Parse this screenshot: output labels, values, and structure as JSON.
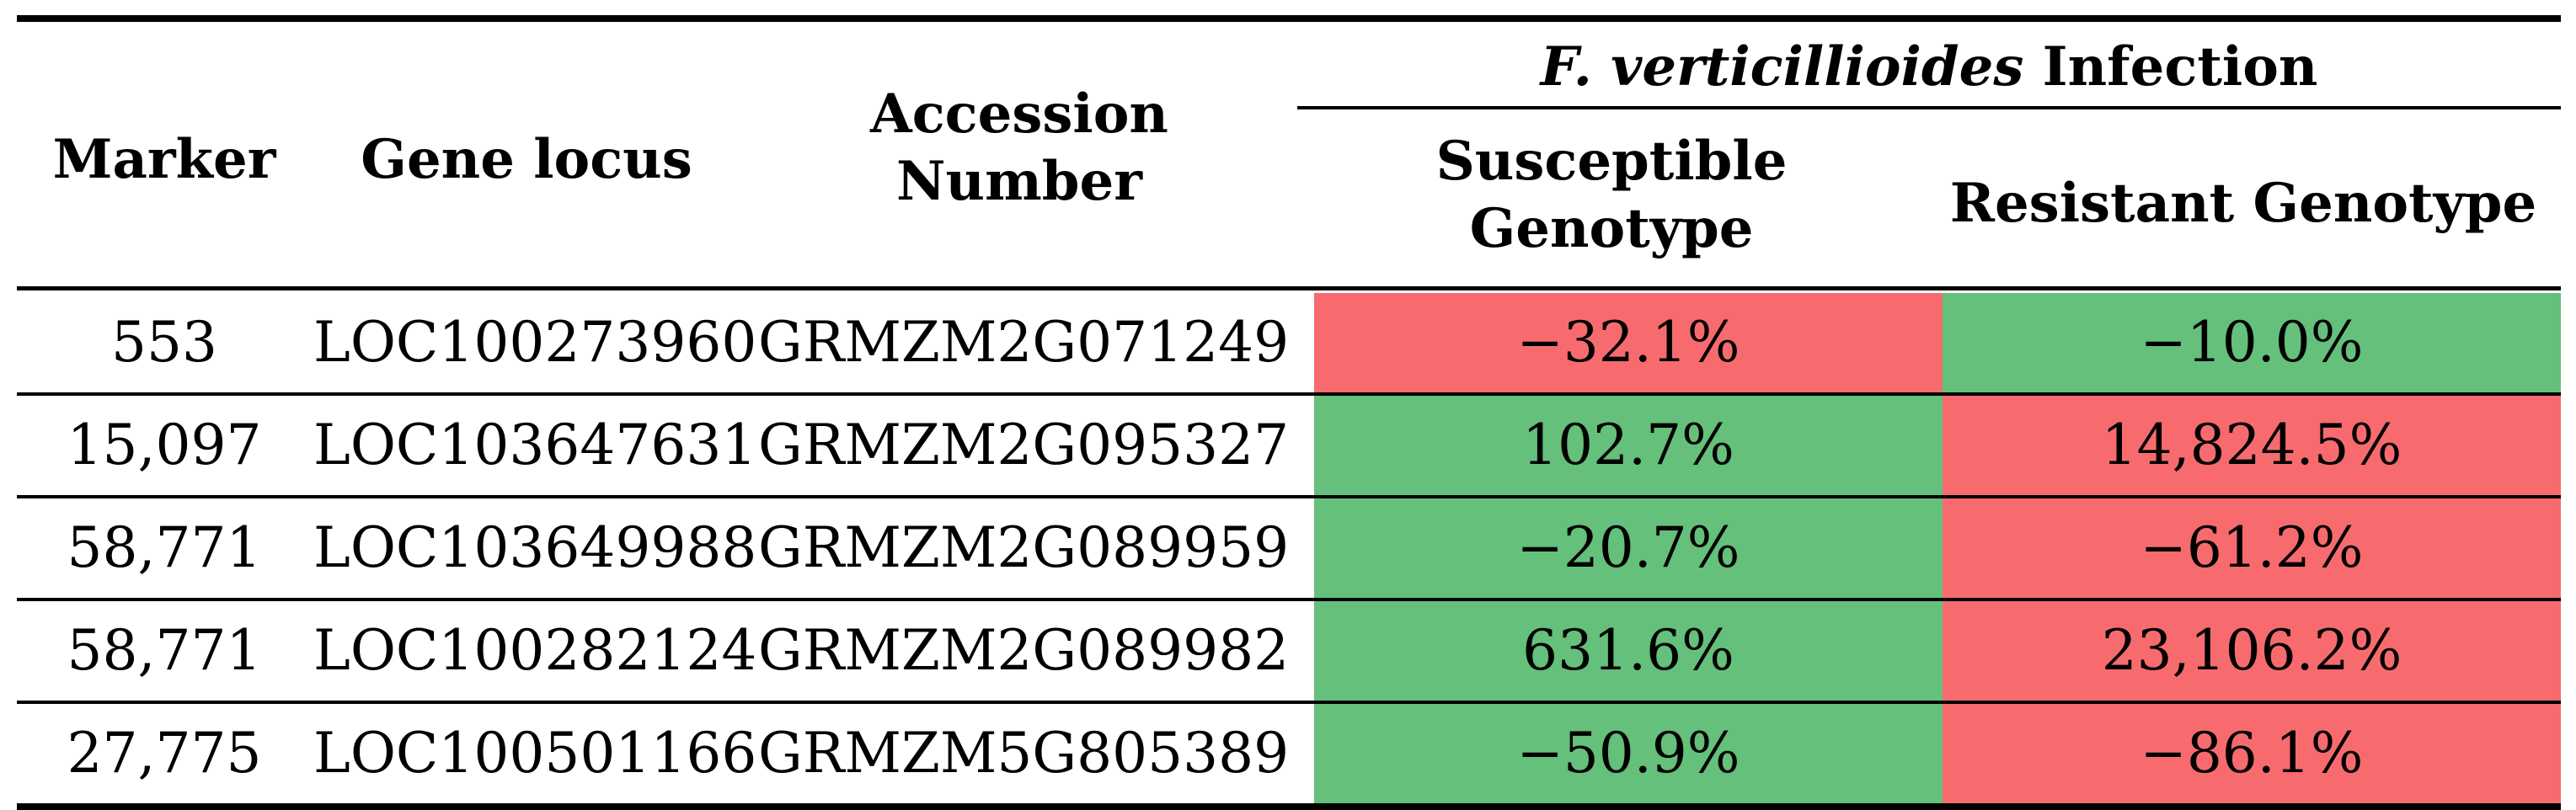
{
  "table": {
    "headers": {
      "marker": "Marker",
      "gene_locus": "Gene locus",
      "accession_line1": "Accession",
      "accession_line2": "Number",
      "group_italic": "F. verticillioides",
      "group_rest": "Infection",
      "susceptible_line1": "Susceptible",
      "susceptible_line2": "Genotype",
      "resistant": "Resistant Genotype"
    },
    "colors": {
      "positive": "#64c07a",
      "negative": "#f76b6e"
    },
    "rows": [
      {
        "marker": "553",
        "gene_locus": "LOC100273960",
        "accession": "GRMZM2G071249",
        "susceptible": "−32.1%",
        "susceptible_color": "#f76b6e",
        "resistant": "−10.0%",
        "resistant_color": "#64c07a"
      },
      {
        "marker": "15,097",
        "gene_locus": "LOC103647631",
        "accession": "GRMZM2G095327",
        "susceptible": "102.7%",
        "susceptible_color": "#64c07a",
        "resistant": "14,824.5%",
        "resistant_color": "#f76b6e"
      },
      {
        "marker": "58,771",
        "gene_locus": "LOC103649988",
        "accession": "GRMZM2G089959",
        "susceptible": "−20.7%",
        "susceptible_color": "#64c07a",
        "resistant": "−61.2%",
        "resistant_color": "#f76b6e"
      },
      {
        "marker": "58,771",
        "gene_locus": "LOC100282124",
        "accession": "GRMZM2G089982",
        "susceptible": "631.6%",
        "susceptible_color": "#64c07a",
        "resistant": "23,106.2%",
        "resistant_color": "#f76b6e"
      },
      {
        "marker": "27,775",
        "gene_locus": "LOC100501166",
        "accession": "GRMZM5G805389",
        "susceptible": "−50.9%",
        "susceptible_color": "#64c07a",
        "resistant": "−86.1%",
        "resistant_color": "#f76b6e"
      }
    ]
  }
}
